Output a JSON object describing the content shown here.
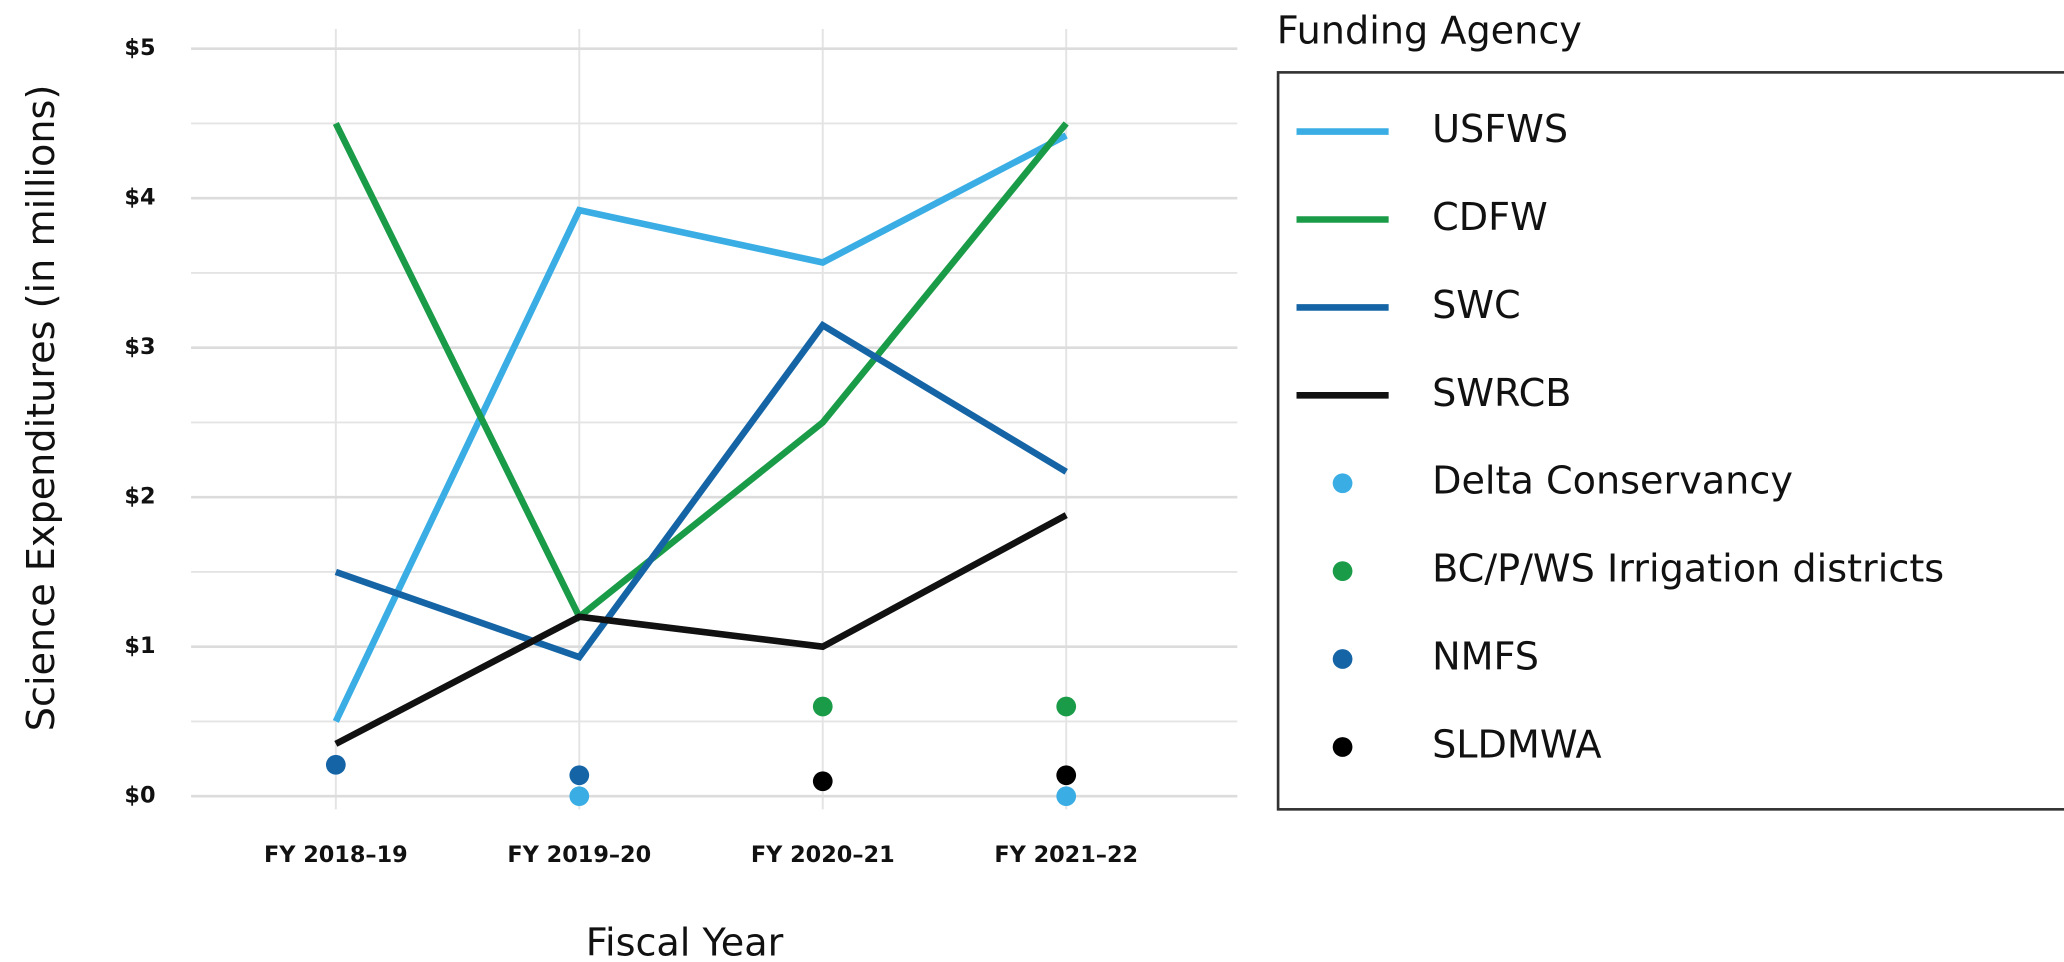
{
  "chart_data": {
    "type": "line",
    "xlabel": "Fiscal Year",
    "ylabel": "Science Expenditures (in millions)",
    "legend_title": "Funding Agency",
    "categories": [
      "FY 2018–19",
      "FY 2019–20",
      "FY 2020–21",
      "FY 2021–22"
    ],
    "ylim": [
      0,
      5
    ],
    "yticks": [
      {
        "value": 0,
        "label": "$0"
      },
      {
        "value": 1,
        "label": "$1"
      },
      {
        "value": 2,
        "label": "$2"
      },
      {
        "value": 3,
        "label": "$3"
      },
      {
        "value": 4,
        "label": "$4"
      },
      {
        "value": 5,
        "label": "$5"
      }
    ],
    "yminor": [
      0.5,
      1.5,
      2.5,
      3.5,
      4.5
    ],
    "grid": true,
    "legend": "right",
    "series": [
      {
        "name": "USFWS",
        "color": "#3aaee4",
        "style": "line",
        "values": [
          0.5,
          3.92,
          3.57,
          4.42
        ]
      },
      {
        "name": "CDFW",
        "color": "#1a9b48",
        "style": "line",
        "values": [
          4.5,
          1.2,
          2.5,
          4.5
        ]
      },
      {
        "name": "SWC",
        "color": "#1565a6",
        "style": "line",
        "values": [
          1.5,
          0.93,
          3.15,
          2.17
        ]
      },
      {
        "name": "SWRCB",
        "color": "#111111",
        "style": "line",
        "values": [
          0.35,
          1.2,
          1.0,
          1.88
        ]
      },
      {
        "name": "Delta Conservancy",
        "color": "#3aaee4",
        "style": "point",
        "values": [
          null,
          0,
          null,
          0
        ]
      },
      {
        "name": "BC/P/WS Irrigation districts",
        "color": "#1a9b48",
        "style": "point",
        "values": [
          null,
          null,
          0.6,
          0.6
        ]
      },
      {
        "name": "NMFS",
        "color": "#1565a6",
        "style": "point",
        "values": [
          0.21,
          0.14,
          null,
          null
        ]
      },
      {
        "name": "SLDMWA",
        "color": "#000000",
        "style": "point",
        "values": [
          null,
          null,
          0.1,
          0.14
        ]
      }
    ]
  }
}
